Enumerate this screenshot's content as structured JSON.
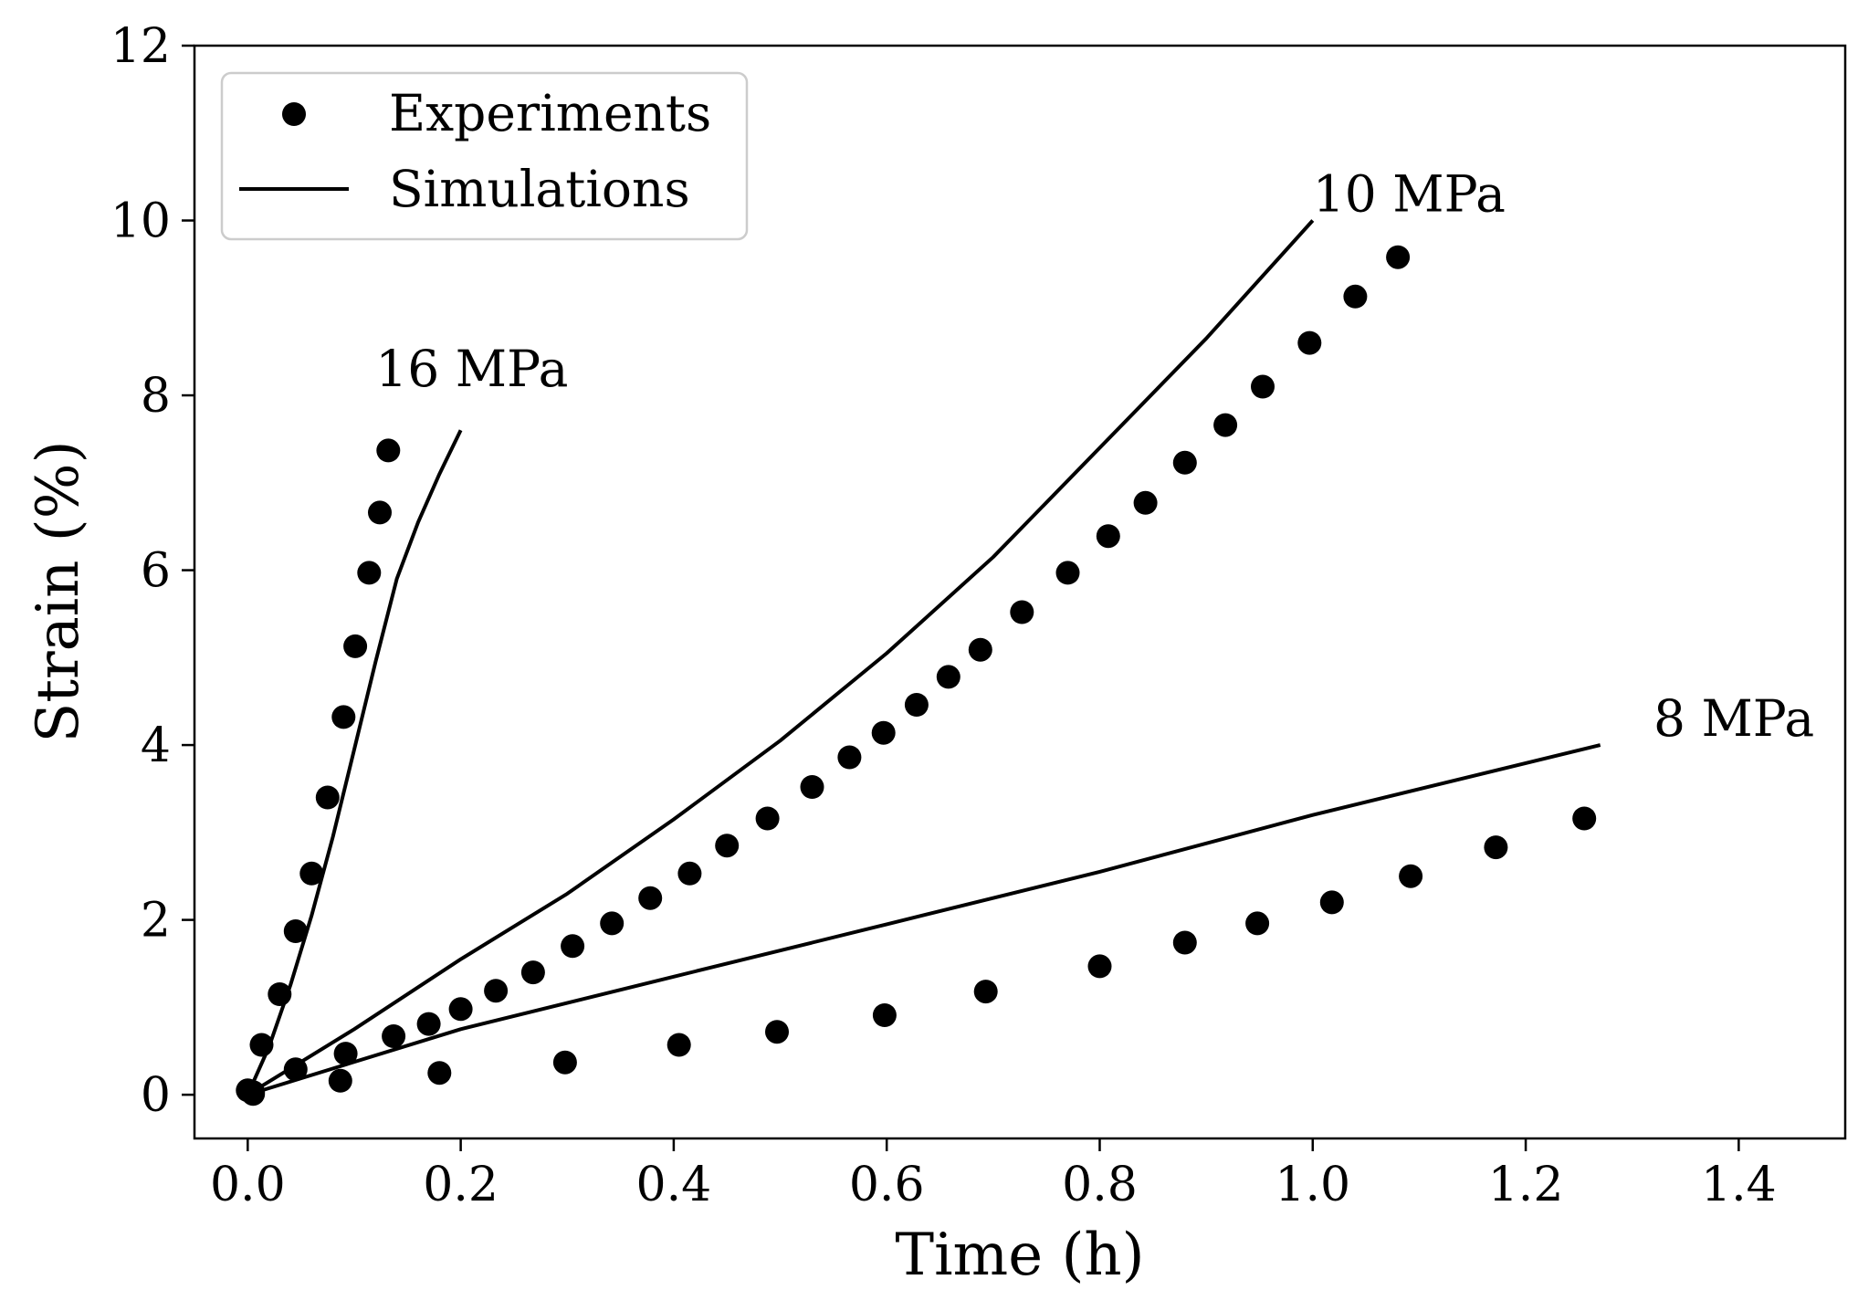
{
  "chart_data": {
    "type": "scatter",
    "title": "",
    "xlabel": "Time (h)",
    "ylabel": "Strain (%)",
    "xlim": [
      -0.05,
      1.5
    ],
    "ylim": [
      -0.5,
      12
    ],
    "xticks": [
      "0.0",
      "0.2",
      "0.4",
      "0.6",
      "0.8",
      "1.0",
      "1.2",
      "1.4"
    ],
    "yticks": [
      "0",
      "2",
      "4",
      "6",
      "8",
      "10",
      "12"
    ],
    "grid": false,
    "legend": {
      "position": "top-left",
      "entries": [
        {
          "label": "Experiments",
          "marker": "circle"
        },
        {
          "label": "Simulations",
          "marker": "line"
        }
      ]
    },
    "series": [
      {
        "stress_label": "16 MPa",
        "label_at": [
          0.12,
          8.0
        ],
        "experiments": [
          [
            0.0,
            0.05
          ],
          [
            0.013,
            0.57
          ],
          [
            0.03,
            1.15
          ],
          [
            0.045,
            1.87
          ],
          [
            0.06,
            2.53
          ],
          [
            0.075,
            3.4
          ],
          [
            0.09,
            4.32
          ],
          [
            0.101,
            5.13
          ],
          [
            0.114,
            5.97
          ],
          [
            0.124,
            6.66
          ],
          [
            0.132,
            7.37
          ]
        ],
        "simulation": [
          [
            0.0,
            0.0
          ],
          [
            0.02,
            0.55
          ],
          [
            0.04,
            1.25
          ],
          [
            0.06,
            2.05
          ],
          [
            0.08,
            2.95
          ],
          [
            0.1,
            3.95
          ],
          [
            0.12,
            4.95
          ],
          [
            0.14,
            5.9
          ],
          [
            0.16,
            6.55
          ],
          [
            0.18,
            7.1
          ],
          [
            0.2,
            7.6
          ]
        ]
      },
      {
        "stress_label": "10 MPa",
        "label_at": [
          1.0,
          10.0
        ],
        "experiments": [
          [
            0.005,
            0.03
          ],
          [
            0.045,
            0.29
          ],
          [
            0.092,
            0.47
          ],
          [
            0.137,
            0.67
          ],
          [
            0.17,
            0.81
          ],
          [
            0.2,
            0.98
          ],
          [
            0.233,
            1.19
          ],
          [
            0.268,
            1.4
          ],
          [
            0.305,
            1.7
          ],
          [
            0.342,
            1.96
          ],
          [
            0.378,
            2.25
          ],
          [
            0.415,
            2.53
          ],
          [
            0.45,
            2.85
          ],
          [
            0.488,
            3.16
          ],
          [
            0.53,
            3.52
          ],
          [
            0.565,
            3.86
          ],
          [
            0.597,
            4.14
          ],
          [
            0.628,
            4.46
          ],
          [
            0.658,
            4.78
          ],
          [
            0.688,
            5.09
          ],
          [
            0.727,
            5.52
          ],
          [
            0.77,
            5.97
          ],
          [
            0.808,
            6.39
          ],
          [
            0.843,
            6.77
          ],
          [
            0.88,
            7.23
          ],
          [
            0.918,
            7.66
          ],
          [
            0.953,
            8.1
          ],
          [
            0.997,
            8.6
          ],
          [
            1.04,
            9.13
          ],
          [
            1.08,
            9.58
          ]
        ],
        "simulation": [
          [
            0.0,
            0.0
          ],
          [
            0.1,
            0.75
          ],
          [
            0.2,
            1.55
          ],
          [
            0.3,
            2.3
          ],
          [
            0.4,
            3.15
          ],
          [
            0.5,
            4.05
          ],
          [
            0.6,
            5.05
          ],
          [
            0.7,
            6.15
          ],
          [
            0.8,
            7.4
          ],
          [
            0.9,
            8.65
          ],
          [
            1.0,
            10.0
          ]
        ]
      },
      {
        "stress_label": "8 MPa",
        "label_at": [
          1.32,
          4.0
        ],
        "experiments": [
          [
            0.005,
            0.01
          ],
          [
            0.087,
            0.16
          ],
          [
            0.18,
            0.25
          ],
          [
            0.298,
            0.37
          ],
          [
            0.405,
            0.57
          ],
          [
            0.497,
            0.72
          ],
          [
            0.598,
            0.91
          ],
          [
            0.693,
            1.18
          ],
          [
            0.8,
            1.47
          ],
          [
            0.88,
            1.74
          ],
          [
            0.948,
            1.96
          ],
          [
            1.018,
            2.2
          ],
          [
            1.092,
            2.5
          ],
          [
            1.172,
            2.83
          ],
          [
            1.255,
            3.16
          ]
        ],
        "simulation": [
          [
            0.0,
            0.0
          ],
          [
            0.2,
            0.75
          ],
          [
            0.4,
            1.35
          ],
          [
            0.6,
            1.95
          ],
          [
            0.8,
            2.55
          ],
          [
            1.0,
            3.2
          ],
          [
            1.27,
            4.0
          ]
        ]
      }
    ]
  }
}
